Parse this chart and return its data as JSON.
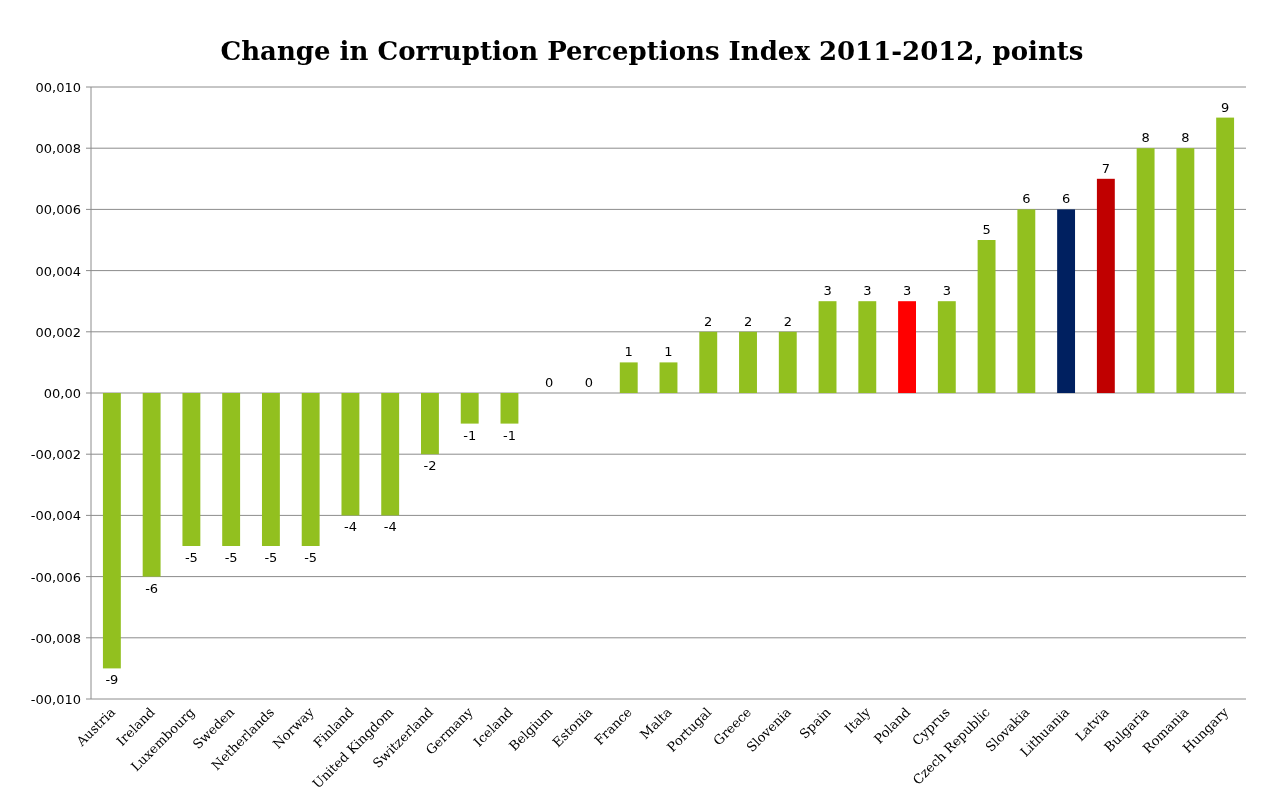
{
  "chart_data": {
    "type": "bar",
    "title": "Change in Corruption Perceptions Index 2011-2012, points",
    "categories": [
      "Austria",
      "Ireland",
      "Luxembourg",
      "Sweden",
      "Netherlands",
      "Norway",
      "Finland",
      "United Kingdom",
      "Switzerland",
      "Germany",
      "Iceland",
      "Belgium",
      "Estonia",
      "France",
      "Malta",
      "Portugal",
      "Greece",
      "Slovenia",
      "Spain",
      "Italy",
      "Poland",
      "Cyprus",
      "Czech Republic",
      "Slovakia",
      "Lithuania",
      "Latvia",
      "Bulgaria",
      "Romania",
      "Hungary"
    ],
    "values": [
      -9,
      -6,
      -5,
      -5,
      -5,
      -5,
      -4,
      -4,
      -2,
      -1,
      -1,
      0,
      0,
      1,
      1,
      2,
      2,
      2,
      3,
      3,
      3,
      3,
      5,
      6,
      6,
      7,
      8,
      8,
      9
    ],
    "data_labels": true,
    "colors": [
      "#92c01f",
      "#92c01f",
      "#92c01f",
      "#92c01f",
      "#92c01f",
      "#92c01f",
      "#92c01f",
      "#92c01f",
      "#92c01f",
      "#92c01f",
      "#92c01f",
      "#92c01f",
      "#1f72b8",
      "#92c01f",
      "#92c01f",
      "#92c01f",
      "#92c01f",
      "#92c01f",
      "#92c01f",
      "#92c01f",
      "#ff0000",
      "#92c01f",
      "#92c01f",
      "#92c01f",
      "#002060",
      "#c00000",
      "#92c01f",
      "#92c01f",
      "#92c01f"
    ],
    "ylim": [
      -10,
      10
    ],
    "yticks": [
      {
        "value": -10,
        "label": "-00,010"
      },
      {
        "value": -8,
        "label": "-00,008"
      },
      {
        "value": -6,
        "label": "-00,006"
      },
      {
        "value": -4,
        "label": "-00,004"
      },
      {
        "value": -2,
        "label": "-00,002"
      },
      {
        "value": 0,
        "label": "00,00"
      },
      {
        "value": 2,
        "label": "00,002"
      },
      {
        "value": 4,
        "label": "00,004"
      },
      {
        "value": 6,
        "label": "00,006"
      },
      {
        "value": 8,
        "label": "00,008"
      },
      {
        "value": 10,
        "label": "00,010"
      }
    ],
    "grid": "y"
  }
}
